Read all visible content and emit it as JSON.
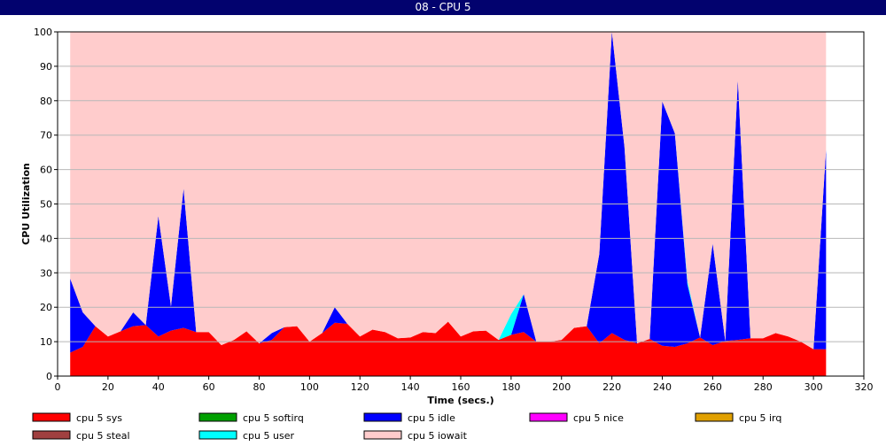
{
  "window": {
    "title": "08 - CPU 5"
  },
  "chart_data": {
    "type": "area",
    "title": "08 - CPU 5",
    "xlabel": "Time (secs.)",
    "ylabel": "CPU Utilization",
    "xlim": [
      0,
      320
    ],
    "ylim": [
      0,
      100
    ],
    "xticks": [
      0,
      20,
      40,
      60,
      80,
      100,
      120,
      140,
      160,
      180,
      200,
      220,
      240,
      260,
      280,
      300,
      320
    ],
    "yticks": [
      0,
      10,
      20,
      30,
      40,
      50,
      60,
      70,
      80,
      90,
      100
    ],
    "grid": true,
    "legend_position": "bottom",
    "x": [
      5,
      10,
      15,
      20,
      25,
      30,
      35,
      40,
      45,
      50,
      55,
      60,
      65,
      70,
      75,
      80,
      85,
      90,
      95,
      100,
      105,
      110,
      115,
      120,
      125,
      130,
      135,
      140,
      145,
      150,
      155,
      160,
      165,
      170,
      175,
      180,
      185,
      190,
      195,
      200,
      205,
      210,
      215,
      220,
      225,
      230,
      235,
      240,
      245,
      250,
      255,
      260,
      265,
      270,
      275,
      280,
      285,
      290,
      295,
      300,
      305
    ],
    "series": [
      {
        "name": "cpu 5 sys",
        "color": "#ff0000",
        "values": [
          6.8,
          8.5,
          14.5,
          11.5,
          13,
          14.5,
          14.8,
          11.5,
          13.2,
          14,
          12.8,
          12.8,
          9,
          10.5,
          13,
          9.5,
          10.5,
          14.2,
          14.5,
          10,
          12.5,
          15.5,
          15.2,
          11.5,
          13.5,
          12.8,
          11,
          11.2,
          12.8,
          12.5,
          15.8,
          11.5,
          13,
          13.2,
          10.5,
          12,
          12.8,
          10,
          10,
          10.5,
          14,
          14.5,
          9.5,
          12.5,
          10.5,
          9.5,
          10.8,
          8.8,
          8.5,
          9.5,
          11.2,
          9,
          10.2,
          10.5,
          11,
          11,
          12.5,
          11.5,
          10,
          7.8,
          7.8
        ]
      },
      {
        "name": "cpu 5 softirq",
        "color": "#00a000",
        "values": [
          0,
          0,
          0,
          0,
          0,
          0,
          0,
          0,
          0,
          0,
          0,
          0,
          0,
          0,
          0,
          0,
          0,
          0,
          0,
          0,
          0,
          0,
          0,
          0,
          0,
          0,
          0,
          0,
          0,
          0,
          0,
          0,
          0,
          0,
          0,
          0,
          0,
          0,
          0,
          0,
          0,
          0,
          0,
          0,
          0,
          0,
          0,
          0,
          0,
          0,
          0,
          0,
          0,
          0,
          0,
          0,
          0,
          0,
          0,
          0,
          0
        ]
      },
      {
        "name": "cpu 5 idle",
        "color": "#0000ff",
        "values": [
          21.5,
          10,
          0,
          0,
          0,
          4,
          0,
          35,
          7,
          40.5,
          0,
          0,
          0,
          0,
          0,
          0,
          2,
          0,
          0,
          0,
          0,
          4.5,
          0,
          0,
          0,
          0,
          0,
          0,
          0,
          0,
          0,
          0,
          0,
          0,
          0,
          0,
          11,
          0,
          0,
          0,
          0,
          0,
          26,
          87.5,
          56,
          0,
          0,
          71,
          62,
          17,
          0,
          29.5,
          0,
          75.5,
          0,
          0,
          0,
          0,
          0,
          0,
          58
        ]
      },
      {
        "name": "cpu 5 nice",
        "color": "#ff00ff",
        "values": [
          0,
          0,
          0,
          0,
          0,
          0,
          0,
          0,
          0,
          0,
          0,
          0,
          0,
          0,
          0,
          0,
          0,
          0,
          0,
          0,
          0,
          0,
          0,
          0,
          0,
          0,
          0,
          0,
          0,
          0,
          0,
          0,
          0,
          0,
          0,
          0,
          0,
          0,
          0,
          0,
          0,
          0,
          0,
          0,
          0,
          0,
          0,
          0,
          0,
          0,
          0,
          0,
          0,
          0,
          0,
          0,
          0,
          0,
          0,
          0,
          0
        ]
      },
      {
        "name": "cpu 5 irq",
        "color": "#e0a000",
        "values": [
          0,
          0,
          0,
          0,
          0,
          0,
          0,
          0,
          0,
          0,
          0,
          0,
          0,
          0,
          0,
          0,
          0,
          0,
          0,
          0,
          0,
          0,
          0,
          0,
          0,
          0,
          0,
          0,
          0,
          0,
          0,
          0,
          0,
          0,
          0,
          0,
          0,
          0,
          0,
          0,
          0,
          0,
          0,
          0,
          0,
          0,
          0,
          0,
          0,
          0,
          0,
          0,
          0,
          0,
          0,
          0,
          0,
          0,
          0,
          0,
          0
        ]
      },
      {
        "name": "cpu 5 steal",
        "color": "#a04040",
        "values": [
          0,
          0,
          0,
          0,
          0,
          0,
          0,
          0,
          0,
          0,
          0,
          0,
          0,
          0,
          0,
          0,
          0,
          0,
          0,
          0,
          0,
          0,
          0,
          0,
          0,
          0,
          0,
          0,
          0,
          0,
          0,
          0,
          0,
          0,
          0,
          0,
          0,
          0,
          0,
          0,
          0,
          0,
          0,
          0,
          0,
          0,
          0,
          0,
          0,
          0,
          0,
          0,
          0,
          0,
          0,
          0,
          0,
          0,
          0,
          0,
          0
        ]
      },
      {
        "name": "cpu 5 user",
        "color": "#00ffff",
        "values": [
          0,
          0,
          0,
          0,
          0,
          0,
          0,
          0,
          0,
          0,
          0,
          0,
          0,
          0,
          0,
          0,
          0,
          0,
          0,
          0,
          0,
          0,
          0,
          0,
          0,
          0,
          0,
          0,
          0,
          0,
          0,
          0,
          0,
          0,
          0,
          6,
          0,
          0,
          0,
          0,
          0,
          0,
          0,
          0,
          0,
          0,
          0,
          0,
          0,
          1,
          0,
          0,
          0,
          0,
          0,
          0,
          0,
          0,
          0,
          0,
          0
        ]
      },
      {
        "name": "cpu 5 iowait",
        "color": "#ffcccc",
        "values": [
          71.7,
          81.5,
          85.5,
          88.5,
          87,
          81.5,
          85.2,
          53.5,
          79.8,
          45.5,
          87.2,
          87.2,
          91,
          89.5,
          87,
          90.5,
          87.5,
          85.8,
          85.5,
          90,
          87.5,
          80,
          84.8,
          88.5,
          86.5,
          87.2,
          89,
          88.8,
          87.2,
          87.5,
          84.2,
          88.5,
          87,
          86.8,
          89.5,
          82,
          76.2,
          90,
          90,
          89.5,
          86,
          85.5,
          64.5,
          0,
          33.5,
          90.5,
          89.2,
          20.2,
          29.5,
          72.5,
          88.8,
          61.5,
          89.8,
          14,
          89,
          89,
          87.5,
          88.5,
          90,
          92.2,
          34.2
        ]
      }
    ]
  }
}
